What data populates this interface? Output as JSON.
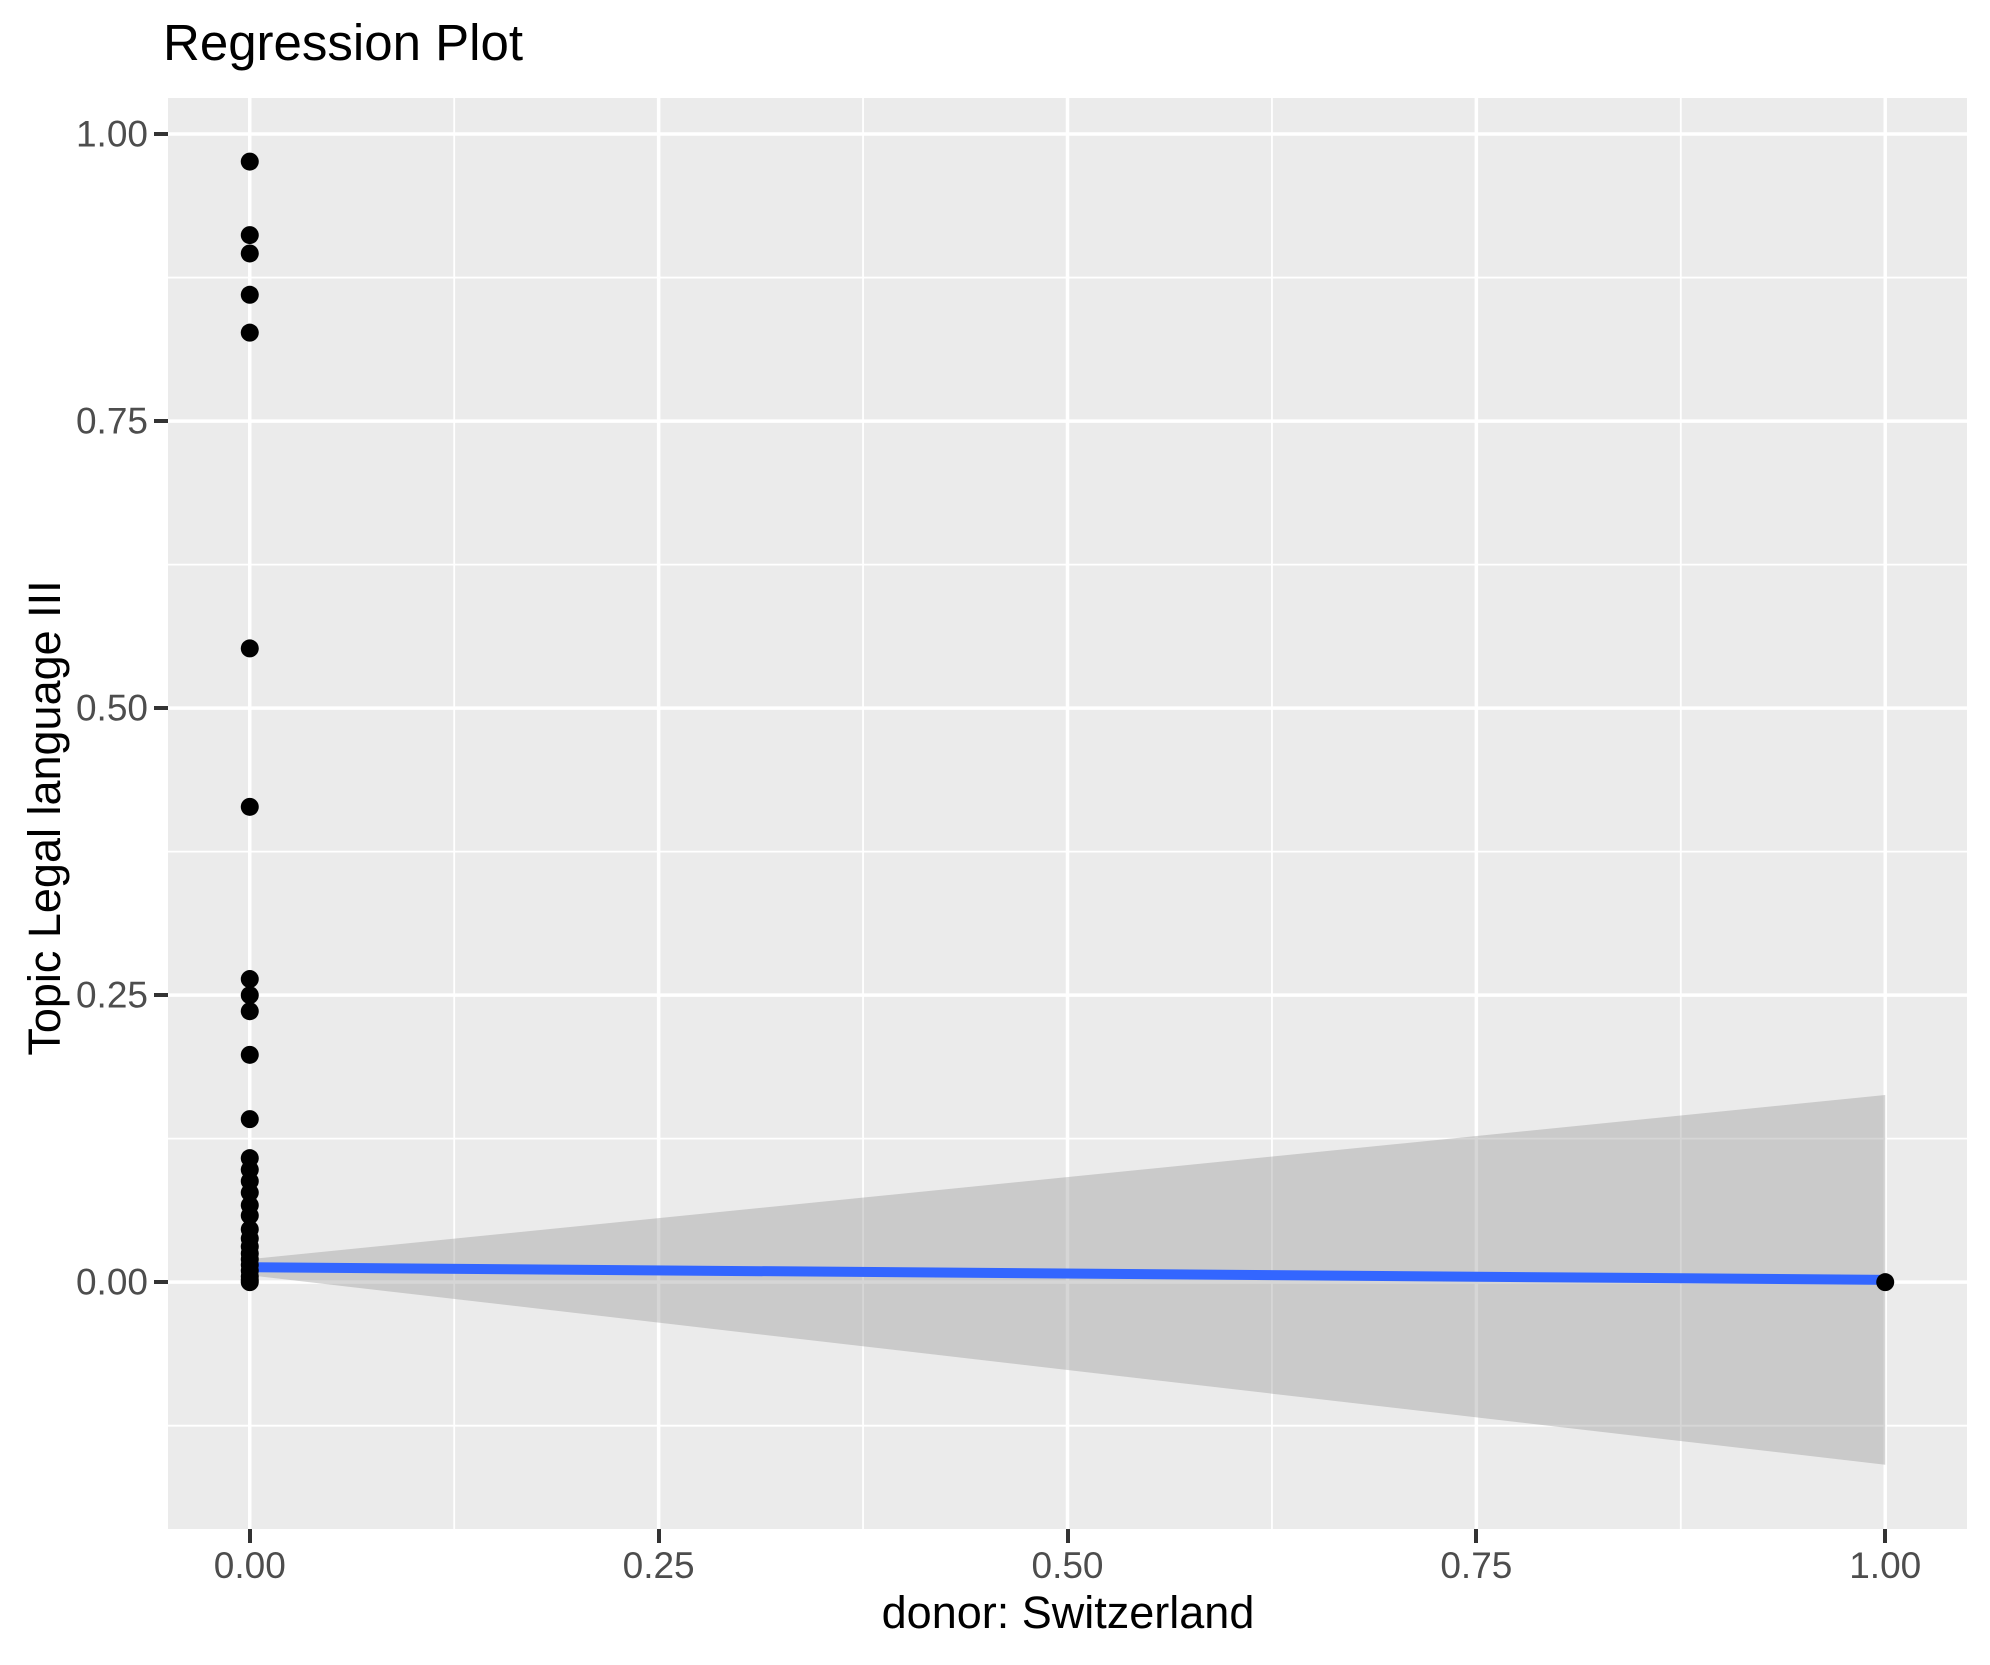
{
  "chart_data": {
    "type": "scatter",
    "title": "Regression Plot",
    "xlabel": "donor: Switzerland",
    "ylabel": "Topic Legal language III",
    "x_tick_labels": [
      "0.00",
      "0.25",
      "0.50",
      "0.75",
      "1.00"
    ],
    "x_tick_values": [
      0,
      0.25,
      0.5,
      0.75,
      1.0
    ],
    "y_tick_labels": [
      "0.00",
      "0.25",
      "0.50",
      "0.75",
      "1.00"
    ],
    "y_tick_values": [
      0,
      0.25,
      0.5,
      0.75,
      1.0
    ],
    "x_minor_values": [
      0.125,
      0.375,
      0.625,
      0.875
    ],
    "y_minor_values": [
      -0.125,
      0.125,
      0.375,
      0.625,
      0.875
    ],
    "xlim": [
      -0.05,
      1.05
    ],
    "ylim": [
      -0.215,
      1.0314
    ],
    "grid": true,
    "legend": false,
    "points": [
      [
        0,
        0.976
      ],
      [
        0,
        0.912
      ],
      [
        0,
        0.896
      ],
      [
        0,
        0.86
      ],
      [
        0,
        0.827
      ],
      [
        0,
        0.552
      ],
      [
        0,
        0.414
      ],
      [
        0,
        0.264
      ],
      [
        0,
        0.25
      ],
      [
        0,
        0.236
      ],
      [
        0,
        0.198
      ],
      [
        0,
        0.142
      ],
      [
        0,
        0.108
      ],
      [
        0,
        0.098
      ],
      [
        0,
        0.088
      ],
      [
        0,
        0.078
      ],
      [
        0,
        0.067
      ],
      [
        0,
        0.058
      ],
      [
        0,
        0.046
      ],
      [
        0,
        0.038
      ],
      [
        0,
        0.031
      ],
      [
        0,
        0.025
      ],
      [
        0,
        0.02
      ],
      [
        0,
        0.015
      ],
      [
        0,
        0.01
      ],
      [
        0,
        0.005
      ],
      [
        0,
        0.002
      ],
      [
        0,
        0.0
      ],
      [
        1,
        0.0
      ]
    ],
    "regression_line": {
      "x": [
        0,
        1
      ],
      "y": [
        0.013,
        0.002
      ]
    },
    "confidence_band": {
      "x": [
        0,
        1
      ],
      "upper": [
        0.02,
        0.163
      ],
      "lower": [
        0.006,
        -0.159
      ]
    },
    "colors": {
      "panel_bg": "#EBEBEB",
      "grid": "#FFFFFF",
      "point": "#000000",
      "line": "#3366FF",
      "band": "rgba(153,153,153,0.4)",
      "tick_label": "#4D4D4D",
      "tick_mark": "#333333",
      "text": "#000000"
    }
  }
}
